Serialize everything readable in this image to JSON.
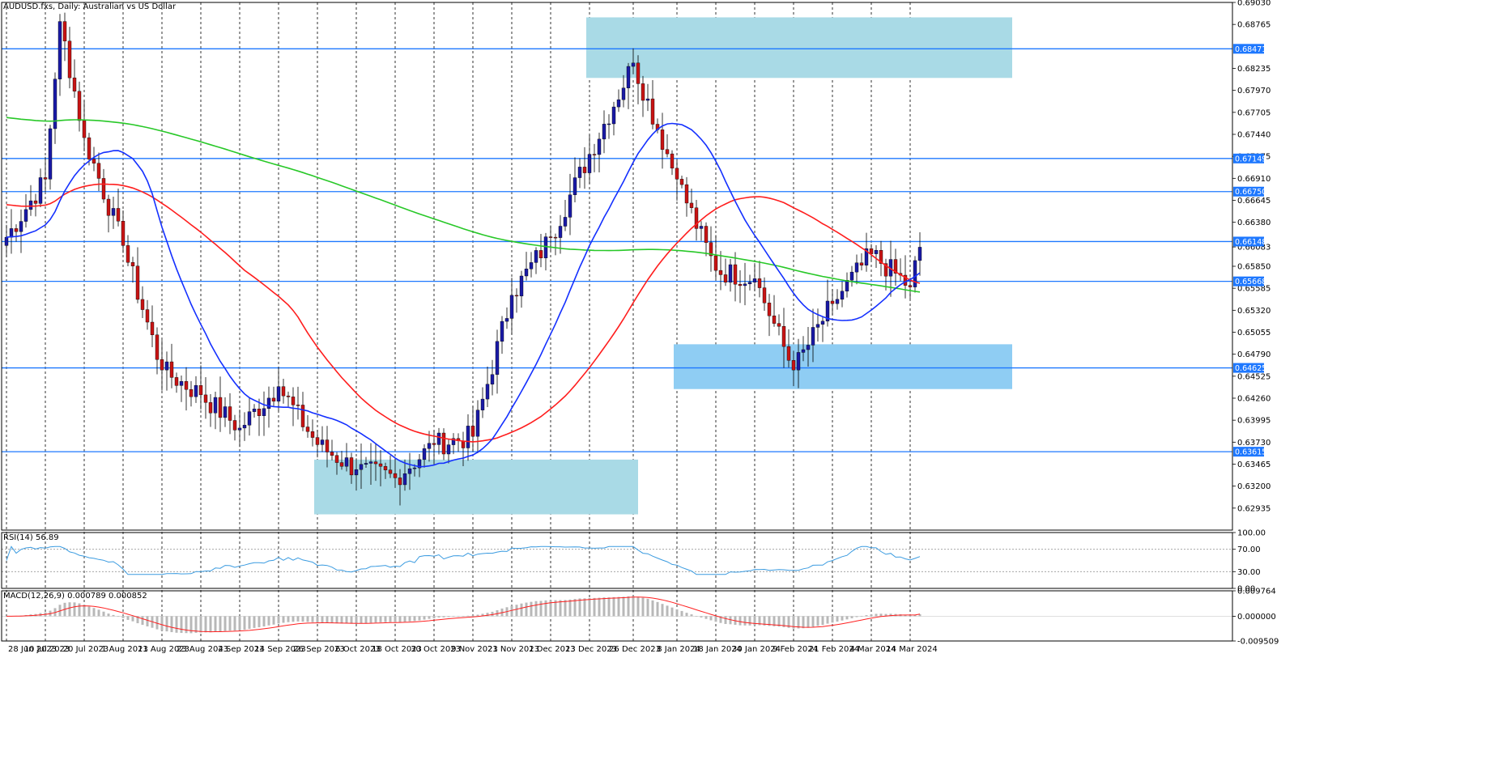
{
  "header": {
    "main": "AUDUSD.fxs, Daily:  Australian vs US Dollar",
    "rsi": "RSI(14) 56.89",
    "macd": "MACD(12,26,9) 0.000789 0.000852"
  },
  "colors": {
    "bull": "#1a1aa6",
    "bear": "#c81414",
    "sma20": "#1430ff",
    "sma50": "#ff1e1e",
    "sma200": "#28c828",
    "hline": "#1e78ff",
    "zone_light": "#a9dae6",
    "zone_mid": "#8fcdf3",
    "rsi_line": "#3a9be0",
    "macd_hist": "#b8b8b8",
    "macd_signal": "#ff2020"
  },
  "chart_data": [
    {
      "type": "candlestick",
      "symbol": "AUDUSD.fxs",
      "timeframe": "Daily",
      "title": "AUDUSD.fxs, Daily:  Australian vs US Dollar",
      "ylim": [
        0.6267,
        0.6903
      ],
      "y_ticks": [
        "0.69030",
        "0.68765",
        "0.68235",
        "0.67970",
        "0.67705",
        "0.67440",
        "0.67175",
        "0.66910",
        "0.66645",
        "0.66380",
        "0.66083",
        "0.65850",
        "0.65585",
        "0.65320",
        "0.65055",
        "0.64790",
        "0.64525",
        "0.64260",
        "0.63995",
        "0.63730",
        "0.63465",
        "0.63200",
        "0.62935"
      ],
      "x_ticks": [
        "28 Jun 2023",
        "10 Jul 2023",
        "20 Jul 2023",
        "1 Aug 2023",
        "11 Aug 2023",
        "23 Aug 2023",
        "4 Sep 2023",
        "14 Sep 2023",
        "26 Sep 2023",
        "6 Oct 2023",
        "18 Oct 2023",
        "30 Oct 2023",
        "9 Nov 2023",
        "21 Nov 2023",
        "1 Dec 2023",
        "13 Dec 2023",
        "26 Dec 2023",
        "8 Jan 2024",
        "18 Jan 2024",
        "30 Jan 2024",
        "9 Feb 2024",
        "21 Feb 2024",
        "4 Mar 2024",
        "14 Mar 2024"
      ],
      "horizontal_levels": [
        "0.68471",
        "0.67149",
        "0.66750",
        "0.66148",
        "0.65668",
        "0.64625",
        "0.63615"
      ],
      "zones": [
        {
          "start": "13 Dec 2023",
          "end": "after 14 Mar 2024",
          "low": 0.6812,
          "high": 0.6885
        },
        {
          "start": "26 Sep 2023",
          "end": "26 Dec 2023",
          "low": 0.6286,
          "high": 0.6352
        },
        {
          "start": "8 Jan 2024",
          "end": "after 14 Mar 2024",
          "low": 0.6437,
          "high": 0.6491
        }
      ],
      "series_info": [
        "SMA 20 (blue)",
        "SMA 50 (red)",
        "SMA 200 (green)"
      ],
      "ohlc_anchor_closes": [
        {
          "date": "28 Jun 2023",
          "close": 0.662
        },
        {
          "date": "10 Jul 2023",
          "close": 0.669
        },
        {
          "date": "13 Jul 2023",
          "close": 0.688
        },
        {
          "date": "20 Jul 2023",
          "close": 0.674
        },
        {
          "date": "1 Aug 2023",
          "close": 0.661
        },
        {
          "date": "11 Aug 2023",
          "close": 0.646
        },
        {
          "date": "23 Aug 2023",
          "close": 0.643
        },
        {
          "date": "4 Sep 2023",
          "close": 0.639
        },
        {
          "date": "14 Sep 2023",
          "close": 0.644
        },
        {
          "date": "26 Sep 2023",
          "close": 0.637
        },
        {
          "date": "6 Oct 2023",
          "close": 0.634
        },
        {
          "date": "18 Oct 2023",
          "close": 0.633
        },
        {
          "date": "30 Oct 2023",
          "close": 0.637
        },
        {
          "date": "9 Nov 2023",
          "close": 0.638
        },
        {
          "date": "21 Nov 2023",
          "close": 0.655
        },
        {
          "date": "1 Dec 2023",
          "close": 0.662
        },
        {
          "date": "13 Dec 2023",
          "close": 0.672
        },
        {
          "date": "26 Dec 2023",
          "close": 0.683
        },
        {
          "date": "8 Jan 2024",
          "close": 0.669
        },
        {
          "date": "18 Jan 2024",
          "close": 0.658
        },
        {
          "date": "30 Jan 2024",
          "close": 0.657
        },
        {
          "date": "9 Feb 2024",
          "close": 0.646
        },
        {
          "date": "21 Feb 2024",
          "close": 0.654
        },
        {
          "date": "4 Mar 2024",
          "close": 0.66
        },
        {
          "date": "14 Mar 2024",
          "close": 0.656
        },
        {
          "date": "18 Mar 2024",
          "close": 0.6608
        }
      ]
    },
    {
      "type": "line",
      "title": "RSI(14) 56.89",
      "ylim": [
        0,
        100
      ],
      "y_ticks": [
        "100.00",
        "70.00",
        "30.00",
        "0.00"
      ],
      "levels": [
        70,
        30
      ],
      "last_value": 56.89
    },
    {
      "type": "bar",
      "title": "MACD(12,26,9) 0.000789 0.000852",
      "y_ticks": [
        "0.009764",
        "0.000000",
        "-0.009509"
      ],
      "ylim": [
        -0.009509,
        0.009764
      ],
      "macd": 0.000789,
      "signal": 0.000852
    }
  ]
}
